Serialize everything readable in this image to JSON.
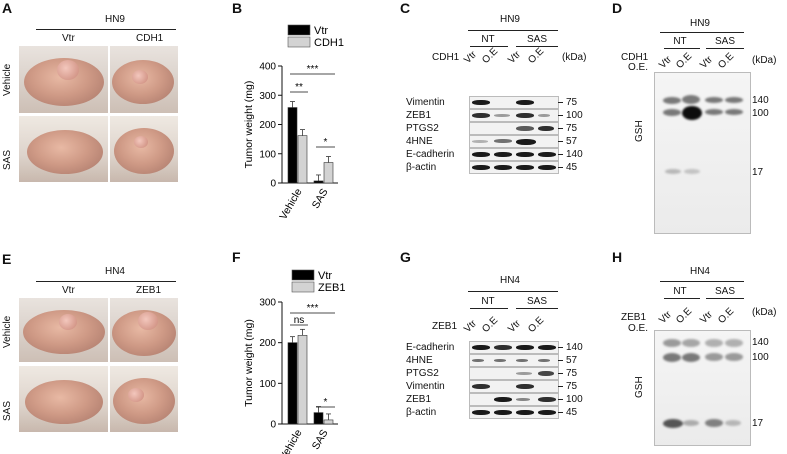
{
  "panels": {
    "A": {
      "letter": "A",
      "cell_line": "HN9",
      "col1": "Vtr",
      "col2": "CDH1",
      "row1": "Vehicle",
      "row2": "SAS"
    },
    "E": {
      "letter": "E",
      "cell_line": "HN4",
      "col1": "Vtr",
      "col2": "ZEB1",
      "row1": "Vehicle",
      "row2": "SAS"
    },
    "B": {
      "letter": "B"
    },
    "F": {
      "letter": "F"
    },
    "C": {
      "letter": "C",
      "cell_line": "HN9",
      "nt": "NT",
      "sas": "SAS",
      "oe_label": "CDH1",
      "lanes": [
        "Vtr",
        "O.E",
        "Vtr",
        "O.E"
      ],
      "kda": "(kDa)",
      "rows": [
        {
          "name": "Vimentin",
          "mw": "75"
        },
        {
          "name": "ZEB1",
          "mw": "100"
        },
        {
          "name": "PTGS2",
          "mw": "75"
        },
        {
          "name": "4HNE",
          "mw": "57"
        },
        {
          "name": "E-cadherin",
          "mw": "140"
        },
        {
          "name": "β-actin",
          "mw": "45"
        }
      ]
    },
    "G": {
      "letter": "G",
      "cell_line": "HN4",
      "nt": "NT",
      "sas": "SAS",
      "oe_label": "ZEB1",
      "lanes": [
        "Vtr",
        "O.E",
        "Vtr",
        "O.E"
      ],
      "kda": "(kDa)",
      "rows": [
        {
          "name": "E-cadherin",
          "mw": "140"
        },
        {
          "name": "4HNE",
          "mw": "57"
        },
        {
          "name": "PTGS2",
          "mw": "75"
        },
        {
          "name": "Vimentin",
          "mw": "75"
        },
        {
          "name": "ZEB1",
          "mw": "100"
        },
        {
          "name": "β-actin",
          "mw": "45"
        }
      ]
    },
    "D": {
      "letter": "D",
      "cell_line": "HN9",
      "nt": "NT",
      "sas": "SAS",
      "oe_label": "CDH1",
      "oe_sub": "O.E.",
      "lanes": [
        "Vtr",
        "O.E",
        "Vtr",
        "O.E"
      ],
      "kda": "(kDa)",
      "ylabel": "GSH",
      "mw": [
        "140",
        "100",
        "17"
      ]
    },
    "H": {
      "letter": "H",
      "cell_line": "HN4",
      "nt": "NT",
      "sas": "SAS",
      "oe_label": "ZEB1",
      "oe_sub": "O.E.",
      "lanes": [
        "Vtr",
        "O.E",
        "Vtr",
        "O.E"
      ],
      "kda": "(kDa)",
      "ylabel": "GSH",
      "mw": [
        "140",
        "100",
        "17"
      ]
    }
  },
  "chart_data": [
    {
      "type": "bar",
      "panel": "B",
      "categories": [
        "Vehicle",
        "SAS"
      ],
      "series": [
        {
          "name": "Vtr",
          "color": "#000000",
          "values": [
            258,
            7
          ]
        },
        {
          "name": "CDH1",
          "color": "#d3d3d3",
          "values": [
            162,
            70
          ]
        }
      ],
      "ylabel": "Tumor weight (mg)",
      "ylim": [
        0,
        400
      ],
      "yticks": [
        "0",
        "100",
        "200",
        "300",
        "400"
      ],
      "annotations": [
        "**",
        "***",
        "*"
      ],
      "legend": "top"
    },
    {
      "type": "bar",
      "panel": "F",
      "categories": [
        "Vehicle",
        "SAS"
      ],
      "series": [
        {
          "name": "Vtr",
          "color": "#000000",
          "values": [
            200,
            28
          ]
        },
        {
          "name": "ZEB1",
          "color": "#d3d3d3",
          "values": [
            218,
            10
          ]
        }
      ],
      "ylabel": "Tumor weight (mg)",
      "ylim": [
        0,
        300
      ],
      "yticks": [
        "0",
        "100",
        "200",
        "300"
      ],
      "annotations": [
        "ns",
        "***",
        "*"
      ],
      "legend": "top"
    }
  ]
}
